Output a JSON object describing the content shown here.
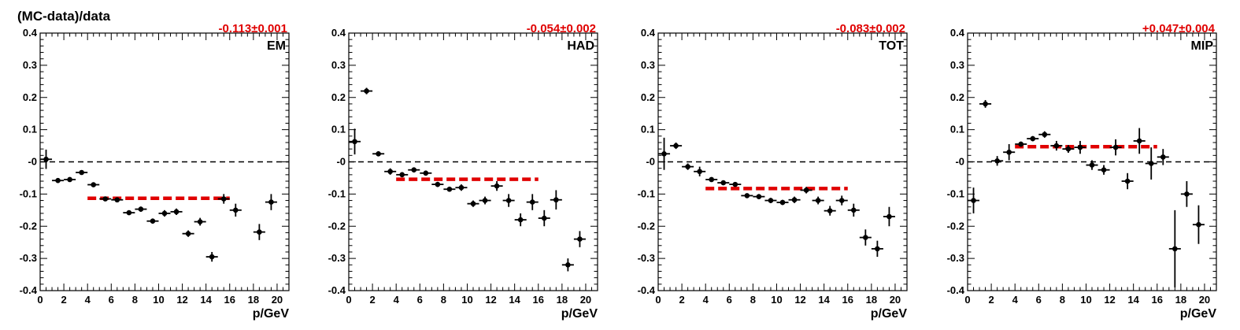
{
  "ylabel": "(MC-data)/data",
  "colors": {
    "fit": "#e00000",
    "points": "#000000",
    "reference": "#000000"
  },
  "chart_data": [
    {
      "type": "scatter",
      "tag": "EM",
      "fit_label": "-0.113±0.001",
      "fit": {
        "value": -0.113,
        "x_range": [
          4,
          16
        ]
      },
      "xlabel": "p/GeV",
      "xlim": [
        0,
        21
      ],
      "ylim": [
        -0.4,
        0.4
      ],
      "xticks": [
        "0",
        "2",
        "4",
        "6",
        "8",
        "10",
        "12",
        "14",
        "16",
        "18",
        "20"
      ],
      "yticks": [
        "0.4",
        "0.3",
        "0.2",
        "0.1",
        "-0",
        "-0.1",
        "-0.2",
        "-0.3",
        "-0.4"
      ],
      "reference_line": 0,
      "points": [
        {
          "x": 0.5,
          "y": 0.008,
          "err": 0.03
        },
        {
          "x": 1.5,
          "y": -0.058,
          "err": 0.007
        },
        {
          "x": 2.5,
          "y": -0.055,
          "err": 0.007
        },
        {
          "x": 3.5,
          "y": -0.033,
          "err": 0.007
        },
        {
          "x": 4.5,
          "y": -0.071,
          "err": 0.007
        },
        {
          "x": 5.5,
          "y": -0.115,
          "err": 0.007
        },
        {
          "x": 6.5,
          "y": -0.118,
          "err": 0.007
        },
        {
          "x": 7.5,
          "y": -0.158,
          "err": 0.007
        },
        {
          "x": 8.5,
          "y": -0.147,
          "err": 0.008
        },
        {
          "x": 9.5,
          "y": -0.184,
          "err": 0.008
        },
        {
          "x": 10.5,
          "y": -0.16,
          "err": 0.01
        },
        {
          "x": 11.5,
          "y": -0.155,
          "err": 0.01
        },
        {
          "x": 12.5,
          "y": -0.223,
          "err": 0.01
        },
        {
          "x": 13.5,
          "y": -0.186,
          "err": 0.012
        },
        {
          "x": 14.5,
          "y": -0.295,
          "err": 0.015
        },
        {
          "x": 15.5,
          "y": -0.115,
          "err": 0.015
        },
        {
          "x": 16.5,
          "y": -0.15,
          "err": 0.02
        },
        {
          "x": 18.5,
          "y": -0.218,
          "err": 0.025
        },
        {
          "x": 19.5,
          "y": -0.125,
          "err": 0.025
        }
      ]
    },
    {
      "type": "scatter",
      "tag": "HAD",
      "fit_label": "-0.054±0.002",
      "fit": {
        "value": -0.054,
        "x_range": [
          4,
          16
        ]
      },
      "xlabel": "p/GeV",
      "xlim": [
        0,
        21
      ],
      "ylim": [
        -0.4,
        0.4
      ],
      "xticks": [
        "0",
        "2",
        "4",
        "6",
        "8",
        "10",
        "12",
        "14",
        "16",
        "18",
        "20"
      ],
      "yticks": [
        "0.4",
        "0.3",
        "0.2",
        "0.1",
        "-0",
        "-0.1",
        "-0.2",
        "-0.3",
        "-0.4"
      ],
      "reference_line": 0,
      "points": [
        {
          "x": 0.5,
          "y": 0.063,
          "err": 0.04
        },
        {
          "x": 1.5,
          "y": 0.22,
          "err": 0.01
        },
        {
          "x": 2.5,
          "y": 0.025,
          "err": 0.008
        },
        {
          "x": 3.5,
          "y": -0.03,
          "err": 0.01
        },
        {
          "x": 4.5,
          "y": -0.04,
          "err": 0.008
        },
        {
          "x": 5.5,
          "y": -0.025,
          "err": 0.008
        },
        {
          "x": 6.5,
          "y": -0.035,
          "err": 0.008
        },
        {
          "x": 7.5,
          "y": -0.07,
          "err": 0.008
        },
        {
          "x": 8.5,
          "y": -0.085,
          "err": 0.008
        },
        {
          "x": 9.5,
          "y": -0.08,
          "err": 0.01
        },
        {
          "x": 10.5,
          "y": -0.13,
          "err": 0.01
        },
        {
          "x": 11.5,
          "y": -0.12,
          "err": 0.012
        },
        {
          "x": 12.5,
          "y": -0.075,
          "err": 0.015
        },
        {
          "x": 13.5,
          "y": -0.12,
          "err": 0.02
        },
        {
          "x": 14.5,
          "y": -0.18,
          "err": 0.02
        },
        {
          "x": 15.5,
          "y": -0.125,
          "err": 0.025
        },
        {
          "x": 16.5,
          "y": -0.175,
          "err": 0.025
        },
        {
          "x": 17.5,
          "y": -0.118,
          "err": 0.03
        },
        {
          "x": 18.5,
          "y": -0.32,
          "err": 0.02
        },
        {
          "x": 19.5,
          "y": -0.24,
          "err": 0.025
        }
      ]
    },
    {
      "type": "scatter",
      "tag": "TOT",
      "fit_label": "-0.083±0.002",
      "fit": {
        "value": -0.083,
        "x_range": [
          4,
          16
        ]
      },
      "xlabel": "p/GeV",
      "xlim": [
        0,
        21
      ],
      "ylim": [
        -0.4,
        0.4
      ],
      "xticks": [
        "0",
        "2",
        "4",
        "6",
        "8",
        "10",
        "12",
        "14",
        "16",
        "18",
        "20"
      ],
      "yticks": [
        "0.4",
        "0.3",
        "0.2",
        "0.1",
        "-0",
        "-0.1",
        "-0.2",
        "-0.3",
        "-0.4"
      ],
      "reference_line": 0,
      "points": [
        {
          "x": 0.5,
          "y": 0.025,
          "err": 0.05
        },
        {
          "x": 1.5,
          "y": 0.05,
          "err": 0.01
        },
        {
          "x": 2.5,
          "y": -0.015,
          "err": 0.01
        },
        {
          "x": 3.5,
          "y": -0.03,
          "err": 0.015
        },
        {
          "x": 4.5,
          "y": -0.055,
          "err": 0.007
        },
        {
          "x": 5.5,
          "y": -0.065,
          "err": 0.007
        },
        {
          "x": 6.5,
          "y": -0.07,
          "err": 0.007
        },
        {
          "x": 7.5,
          "y": -0.105,
          "err": 0.007
        },
        {
          "x": 8.5,
          "y": -0.108,
          "err": 0.008
        },
        {
          "x": 9.5,
          "y": -0.12,
          "err": 0.008
        },
        {
          "x": 10.5,
          "y": -0.126,
          "err": 0.008
        },
        {
          "x": 11.5,
          "y": -0.118,
          "err": 0.01
        },
        {
          "x": 12.5,
          "y": -0.088,
          "err": 0.01
        },
        {
          "x": 13.5,
          "y": -0.12,
          "err": 0.012
        },
        {
          "x": 14.5,
          "y": -0.152,
          "err": 0.015
        },
        {
          "x": 15.5,
          "y": -0.12,
          "err": 0.015
        },
        {
          "x": 16.5,
          "y": -0.15,
          "err": 0.02
        },
        {
          "x": 17.5,
          "y": -0.235,
          "err": 0.025
        },
        {
          "x": 18.5,
          "y": -0.27,
          "err": 0.025
        },
        {
          "x": 19.5,
          "y": -0.17,
          "err": 0.03
        }
      ]
    },
    {
      "type": "scatter",
      "tag": "MIP",
      "fit_label": "+0.047±0.004",
      "fit": {
        "value": 0.047,
        "x_range": [
          4,
          16
        ]
      },
      "xlabel": "p/GeV",
      "xlim": [
        0,
        21
      ],
      "ylim": [
        -0.4,
        0.4
      ],
      "xticks": [
        "0",
        "2",
        "4",
        "6",
        "8",
        "10",
        "12",
        "14",
        "16",
        "18",
        "20"
      ],
      "yticks": [
        "0.4",
        "0.3",
        "0.2",
        "0.1",
        "-0",
        "-0.1",
        "-0.2",
        "-0.3",
        "-0.4"
      ],
      "reference_line": 0,
      "points": [
        {
          "x": 0.5,
          "y": -0.12,
          "err": 0.04
        },
        {
          "x": 1.5,
          "y": 0.18,
          "err": 0.012
        },
        {
          "x": 2.5,
          "y": 0.003,
          "err": 0.015
        },
        {
          "x": 3.5,
          "y": 0.03,
          "err": 0.025
        },
        {
          "x": 4.5,
          "y": 0.055,
          "err": 0.008
        },
        {
          "x": 5.5,
          "y": 0.072,
          "err": 0.008
        },
        {
          "x": 6.5,
          "y": 0.085,
          "err": 0.01
        },
        {
          "x": 7.5,
          "y": 0.05,
          "err": 0.015
        },
        {
          "x": 8.5,
          "y": 0.04,
          "err": 0.012
        },
        {
          "x": 9.5,
          "y": 0.045,
          "err": 0.02
        },
        {
          "x": 10.5,
          "y": -0.01,
          "err": 0.015
        },
        {
          "x": 11.5,
          "y": -0.025,
          "err": 0.015
        },
        {
          "x": 12.5,
          "y": 0.045,
          "err": 0.025
        },
        {
          "x": 13.5,
          "y": -0.06,
          "err": 0.025
        },
        {
          "x": 14.5,
          "y": 0.065,
          "err": 0.04
        },
        {
          "x": 15.5,
          "y": -0.005,
          "err": 0.05
        },
        {
          "x": 16.5,
          "y": 0.015,
          "err": 0.025
        },
        {
          "x": 17.5,
          "y": -0.27,
          "err": 0.12
        },
        {
          "x": 18.5,
          "y": -0.1,
          "err": 0.04
        },
        {
          "x": 19.5,
          "y": -0.195,
          "err": 0.06
        }
      ]
    }
  ]
}
